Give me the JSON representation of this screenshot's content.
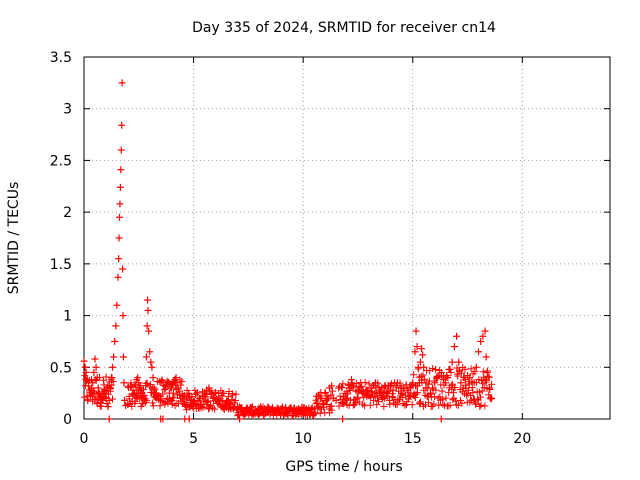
{
  "chart_data": {
    "type": "scatter",
    "title": "Day 335 of 2024, SRMTID for receiver cn14",
    "xlabel": "GPS time / hours",
    "ylabel": "SRMTID / TECUs",
    "xlim": [
      0,
      24
    ],
    "ylim": [
      0,
      3.5
    ],
    "xticks": [
      0,
      5,
      10,
      15,
      20
    ],
    "xtick_labels": [
      "0",
      "5",
      "10",
      "15",
      "20"
    ],
    "yticks": [
      0,
      0.5,
      1,
      1.5,
      2,
      2.5,
      3,
      3.5
    ],
    "ytick_labels": [
      "0",
      "0.5",
      "1",
      "1.5",
      "2",
      "2.5",
      "3",
      "3.5"
    ],
    "grid": true,
    "marker": "+",
    "color": "#ff0000",
    "series": [
      {
        "name": "SRMTID",
        "points": [
          [
            0.0,
            0.56
          ],
          [
            0.05,
            0.5
          ],
          [
            0.1,
            0.45
          ],
          [
            0.15,
            0.38
          ],
          [
            0.2,
            0.32
          ],
          [
            0.25,
            0.28
          ],
          [
            0.3,
            0.26
          ],
          [
            0.35,
            0.3
          ],
          [
            0.4,
            0.35
          ],
          [
            0.45,
            0.45
          ],
          [
            0.5,
            0.58
          ],
          [
            0.55,
            0.5
          ],
          [
            0.6,
            0.4
          ],
          [
            0.65,
            0.3
          ],
          [
            0.7,
            0.25
          ],
          [
            0.75,
            0.22
          ],
          [
            0.8,
            0.2
          ],
          [
            0.85,
            0.18
          ],
          [
            0.9,
            0.22
          ],
          [
            0.95,
            0.25
          ],
          [
            1.0,
            0.2
          ],
          [
            1.05,
            0.15
          ],
          [
            1.1,
            0.12
          ],
          [
            1.15,
            0.18
          ],
          [
            1.2,
            0.3
          ],
          [
            1.25,
            0.4
          ],
          [
            1.3,
            0.5
          ],
          [
            1.35,
            0.6
          ],
          [
            1.4,
            0.75
          ],
          [
            1.45,
            0.9
          ],
          [
            1.5,
            1.1
          ],
          [
            1.55,
            1.37
          ],
          [
            1.58,
            1.55
          ],
          [
            1.6,
            1.75
          ],
          [
            1.62,
            1.95
          ],
          [
            1.64,
            2.08
          ],
          [
            1.66,
            2.24
          ],
          [
            1.68,
            2.41
          ],
          [
            1.7,
            2.6
          ],
          [
            1.72,
            2.84
          ],
          [
            1.74,
            3.25
          ],
          [
            1.76,
            1.45
          ],
          [
            1.78,
            1.0
          ],
          [
            1.8,
            0.6
          ],
          [
            1.82,
            0.35
          ],
          [
            1.85,
            0.18
          ],
          [
            1.9,
            0.13
          ],
          [
            2.0,
            0.14
          ],
          [
            2.1,
            0.15
          ],
          [
            2.2,
            0.17
          ],
          [
            2.3,
            0.25
          ],
          [
            2.35,
            0.33
          ],
          [
            2.4,
            0.38
          ],
          [
            2.45,
            0.4
          ],
          [
            2.5,
            0.35
          ],
          [
            2.55,
            0.3
          ],
          [
            2.6,
            0.28
          ],
          [
            2.65,
            0.25
          ],
          [
            2.7,
            0.22
          ],
          [
            2.75,
            0.18
          ],
          [
            2.8,
            0.16
          ],
          [
            2.85,
            0.6
          ],
          [
            2.88,
            0.9
          ],
          [
            2.9,
            1.15
          ],
          [
            2.92,
            1.05
          ],
          [
            2.95,
            0.85
          ],
          [
            3.0,
            0.65
          ],
          [
            3.05,
            0.55
          ],
          [
            3.1,
            0.5
          ],
          [
            3.15,
            0.4
          ],
          [
            3.2,
            0.3
          ],
          [
            3.3,
            0.25
          ],
          [
            3.4,
            0.2
          ],
          [
            3.5,
            0.18
          ],
          [
            3.6,
            0.17
          ],
          [
            3.7,
            0.16
          ],
          [
            3.8,
            0.2
          ],
          [
            3.9,
            0.25
          ],
          [
            4.0,
            0.3
          ],
          [
            4.05,
            0.34
          ],
          [
            4.1,
            0.36
          ],
          [
            4.15,
            0.38
          ],
          [
            4.2,
            0.4
          ],
          [
            4.25,
            0.35
          ],
          [
            4.3,
            0.3
          ],
          [
            4.4,
            0.2
          ],
          [
            4.5,
            0.15
          ],
          [
            4.6,
            0.14
          ],
          [
            4.7,
            0.13
          ],
          [
            4.8,
            0.12
          ],
          [
            4.9,
            0.13
          ],
          [
            5.0,
            0.14
          ],
          [
            5.1,
            0.15
          ],
          [
            5.2,
            0.18
          ],
          [
            5.3,
            0.2
          ],
          [
            5.4,
            0.22
          ],
          [
            5.5,
            0.25
          ],
          [
            5.6,
            0.28
          ],
          [
            5.7,
            0.3
          ],
          [
            5.8,
            0.25
          ],
          [
            5.9,
            0.2
          ],
          [
            6.0,
            0.18
          ],
          [
            6.1,
            0.15
          ],
          [
            6.2,
            0.14
          ],
          [
            6.3,
            0.13
          ],
          [
            6.4,
            0.12
          ],
          [
            6.5,
            0.11
          ],
          [
            6.6,
            0.1
          ],
          [
            6.8,
            0.11
          ],
          [
            7.0,
            0.12
          ],
          [
            7.2,
            0.11
          ],
          [
            7.4,
            0.09
          ],
          [
            7.6,
            0.08
          ],
          [
            7.8,
            0.06
          ],
          [
            8.0,
            0.05
          ],
          [
            8.2,
            0.06
          ],
          [
            8.4,
            0.07
          ],
          [
            8.6,
            0.08
          ],
          [
            8.8,
            0.09
          ],
          [
            9.0,
            0.1
          ],
          [
            9.2,
            0.11
          ],
          [
            9.4,
            0.1
          ],
          [
            9.6,
            0.09
          ],
          [
            9.8,
            0.1
          ],
          [
            10.0,
            0.06
          ],
          [
            10.2,
            0.08
          ],
          [
            10.4,
            0.1
          ],
          [
            10.6,
            0.15
          ],
          [
            10.8,
            0.2
          ],
          [
            11.0,
            0.25
          ],
          [
            11.2,
            0.3
          ],
          [
            11.3,
            0.32
          ],
          [
            11.5,
            0.18
          ],
          [
            11.8,
            0.15
          ],
          [
            12.0,
            0.2
          ],
          [
            12.1,
            0.3
          ],
          [
            12.2,
            0.38
          ],
          [
            12.3,
            0.32
          ],
          [
            12.5,
            0.28
          ],
          [
            12.7,
            0.25
          ],
          [
            12.9,
            0.22
          ],
          [
            13.1,
            0.3
          ],
          [
            13.3,
            0.35
          ],
          [
            13.5,
            0.28
          ],
          [
            13.7,
            0.3
          ],
          [
            13.9,
            0.32
          ],
          [
            14.1,
            0.28
          ],
          [
            14.3,
            0.35
          ],
          [
            14.5,
            0.3
          ],
          [
            14.7,
            0.33
          ],
          [
            14.9,
            0.3
          ],
          [
            15.0,
            0.35
          ],
          [
            15.1,
            0.65
          ],
          [
            15.15,
            0.85
          ],
          [
            15.2,
            0.7
          ],
          [
            15.25,
            0.5
          ],
          [
            15.3,
            0.35
          ],
          [
            15.35,
            0.55
          ],
          [
            15.4,
            0.68
          ],
          [
            15.45,
            0.62
          ],
          [
            15.5,
            0.5
          ],
          [
            15.6,
            0.3
          ],
          [
            15.7,
            0.22
          ],
          [
            15.8,
            0.25
          ],
          [
            15.9,
            0.3
          ],
          [
            16.0,
            0.35
          ],
          [
            16.1,
            0.4
          ],
          [
            16.2,
            0.42
          ],
          [
            16.3,
            0.45
          ],
          [
            16.4,
            0.38
          ],
          [
            16.5,
            0.35
          ],
          [
            16.6,
            0.4
          ],
          [
            16.7,
            0.48
          ],
          [
            16.8,
            0.55
          ],
          [
            16.9,
            0.7
          ],
          [
            17.0,
            0.8
          ],
          [
            17.1,
            0.55
          ],
          [
            17.2,
            0.35
          ],
          [
            17.3,
            0.3
          ],
          [
            17.4,
            0.38
          ],
          [
            17.5,
            0.42
          ],
          [
            17.6,
            0.4
          ],
          [
            17.7,
            0.36
          ],
          [
            17.8,
            0.35
          ],
          [
            17.9,
            0.5
          ],
          [
            18.0,
            0.65
          ],
          [
            18.1,
            0.75
          ],
          [
            18.2,
            0.8
          ],
          [
            18.3,
            0.85
          ],
          [
            18.35,
            0.6
          ],
          [
            18.4,
            0.45
          ],
          [
            18.5,
            0.3
          ],
          [
            18.6,
            0.2
          ]
        ],
        "bands": [
          [
            0.0,
            1.35,
            0.12,
            0.42
          ],
          [
            2.0,
            2.9,
            0.12,
            0.35
          ],
          [
            3.0,
            4.5,
            0.12,
            0.38
          ],
          [
            4.5,
            7.0,
            0.09,
            0.28
          ],
          [
            7.0,
            10.5,
            0.03,
            0.12
          ],
          [
            10.5,
            11.4,
            0.05,
            0.28
          ],
          [
            11.6,
            15.0,
            0.12,
            0.36
          ],
          [
            15.0,
            18.6,
            0.12,
            0.5
          ]
        ],
        "zero_points": [
          1.15,
          3.5,
          3.6,
          4.6,
          4.8,
          7.1,
          11.8,
          16.3
        ]
      }
    ]
  }
}
